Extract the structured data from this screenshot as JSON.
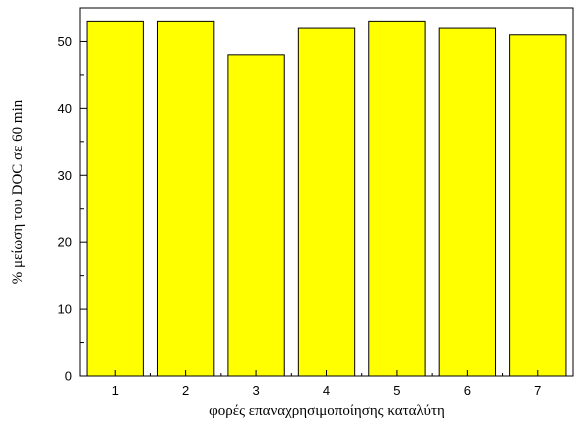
{
  "chart_data": {
    "type": "bar",
    "categories": [
      "1",
      "2",
      "3",
      "4",
      "5",
      "6",
      "7"
    ],
    "values": [
      53,
      53,
      48,
      52,
      53,
      52,
      51
    ],
    "title": "",
    "xlabel": "φορές επαναχρησιμοποίησης καταλύτη",
    "ylabel": "% μείωση του DOC σε 60 min",
    "ylim": [
      0,
      55
    ],
    "yticks": [
      0,
      10,
      20,
      30,
      40,
      50
    ],
    "grid": false,
    "legend": "none",
    "colors": {
      "bar_fill": "#ffff00",
      "bar_stroke": "#000000",
      "axis": "#000000",
      "background": "#ffffff"
    }
  }
}
